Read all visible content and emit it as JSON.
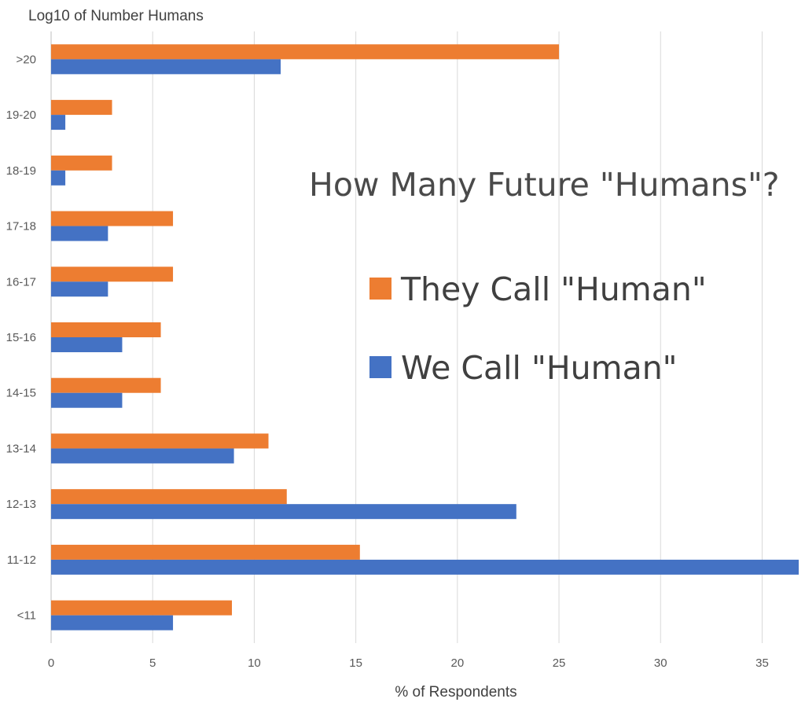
{
  "chart_data": {
    "type": "bar",
    "orientation": "horizontal",
    "title": "How Many Future \"Humans\"?",
    "xlabel": "% of Respondents",
    "ylabel": "Log10 of Number Humans",
    "xlim": [
      0,
      36.8
    ],
    "xticks": [
      0,
      5,
      10,
      15,
      20,
      25,
      30,
      35
    ],
    "grid": "vertical",
    "legend_position": "right",
    "categories": [
      ">20",
      "19-20",
      "18-19",
      "17-18",
      "16-17",
      "15-16",
      "14-15",
      "13-14",
      "12-13",
      "11-12",
      "<11"
    ],
    "series": [
      {
        "name": "They Call \"Human\"",
        "color": "#ED7D31",
        "values": [
          25.0,
          3.0,
          3.0,
          6.0,
          6.0,
          5.4,
          5.4,
          10.7,
          11.6,
          15.2,
          8.9
        ]
      },
      {
        "name": "We Call \"Human\"",
        "color": "#4472C4",
        "values": [
          11.3,
          0.7,
          0.7,
          2.8,
          2.8,
          3.5,
          3.5,
          9.0,
          22.9,
          36.8,
          6.0
        ]
      }
    ]
  }
}
